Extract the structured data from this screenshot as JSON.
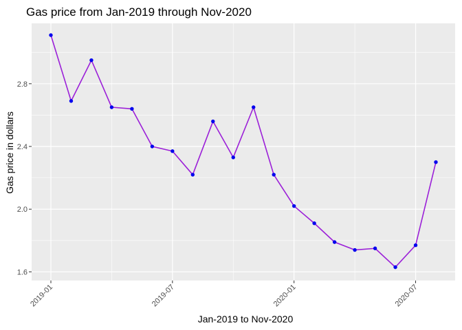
{
  "chart_data": {
    "type": "line",
    "title": "Gas price from Jan-2019 through Nov-2020",
    "xlabel": "Jan-2019 to Nov-2020",
    "ylabel": "Gas price in dollars",
    "x": [
      "2019-01",
      "2019-02",
      "2019-03",
      "2019-04",
      "2019-05",
      "2019-06",
      "2019-07",
      "2019-08",
      "2019-09",
      "2019-10",
      "2019-11",
      "2019-12",
      "2020-01",
      "2020-02",
      "2020-03",
      "2020-04",
      "2020-05",
      "2020-06",
      "2020-07",
      "2020-08"
    ],
    "series": [
      {
        "values": [
          3.11,
          2.69,
          2.95,
          2.65,
          2.64,
          2.4,
          2.37,
          2.22,
          2.56,
          2.33,
          2.65,
          2.22,
          2.02,
          1.91,
          1.79,
          1.74,
          1.75,
          1.63,
          1.77,
          2.3
        ]
      }
    ],
    "x_ticks": [
      "2019-01",
      "2019-07",
      "2020-01",
      "2020-07"
    ],
    "y_ticks": [
      "1.6",
      "2.0",
      "2.4",
      "2.8"
    ],
    "ylim": [
      1.545,
      3.185
    ],
    "grid": true,
    "legend": "none",
    "colors": {
      "panel": "#ebebeb",
      "grid": "#ffffff",
      "line": "#9b1fd8",
      "point": "#0000ee",
      "text": "#000000",
      "tick_text": "#4d4d4d",
      "tick_mark": "#333333"
    }
  }
}
